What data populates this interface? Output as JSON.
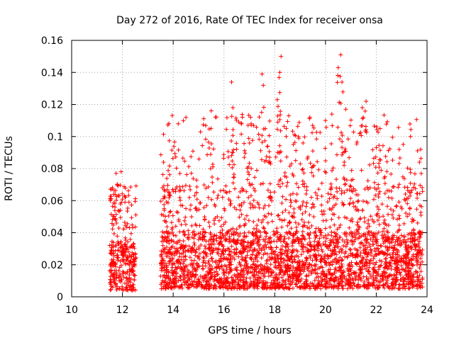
{
  "chart_data": {
    "type": "scatter",
    "title": "Day 272 of 2016, Rate Of TEC Index for receiver onsa",
    "xlabel": "GPS time / hours",
    "ylabel": "ROTI / TECUs",
    "xlim": [
      10,
      24
    ],
    "ylim": [
      0,
      0.16
    ],
    "xticks": [
      10,
      12,
      14,
      16,
      18,
      20,
      22,
      24
    ],
    "xtick_labels": [
      "10",
      "12",
      "14",
      "16",
      "18",
      "20",
      "22",
      "24"
    ],
    "yticks": [
      0,
      0.02,
      0.04,
      0.06,
      0.08,
      0.1,
      0.12,
      0.14,
      0.16
    ],
    "ytick_labels": [
      "0",
      "0.02",
      "0.04",
      "0.06",
      "0.08",
      "0.1",
      "0.12",
      "0.14",
      "0.16"
    ],
    "grid": true,
    "marker": "+",
    "marker_color": "#ff0000",
    "series": [
      {
        "name": "ROTI",
        "segments": [
          {
            "x": [
              11.5,
              12.55
            ],
            "y_typical": [
              0.004,
              0.06
            ],
            "y_max": 0.078
          },
          {
            "x": [
              13.5,
              23.85
            ],
            "y_typical": [
              0.005,
              0.07
            ],
            "y_max": 0.15
          }
        ],
        "notable_points": [
          {
            "x": 11.75,
            "y": 0.077
          },
          {
            "x": 11.95,
            "y": 0.078
          },
          {
            "x": 13.62,
            "y": 0.084
          },
          {
            "x": 15.5,
            "y": 0.116
          },
          {
            "x": 16.3,
            "y": 0.134
          },
          {
            "x": 16.35,
            "y": 0.118
          },
          {
            "x": 16.95,
            "y": 0.107
          },
          {
            "x": 17.05,
            "y": 0.112
          },
          {
            "x": 17.5,
            "y": 0.139
          },
          {
            "x": 17.55,
            "y": 0.132
          },
          {
            "x": 17.8,
            "y": 0.087
          },
          {
            "x": 18.1,
            "y": 0.123
          },
          {
            "x": 18.2,
            "y": 0.14
          },
          {
            "x": 18.25,
            "y": 0.15
          },
          {
            "x": 18.45,
            "y": 0.1
          },
          {
            "x": 19.5,
            "y": 0.091
          },
          {
            "x": 20.0,
            "y": 0.11
          },
          {
            "x": 20.25,
            "y": 0.114
          },
          {
            "x": 20.5,
            "y": 0.143
          },
          {
            "x": 20.6,
            "y": 0.151
          },
          {
            "x": 20.65,
            "y": 0.134
          },
          {
            "x": 20.8,
            "y": 0.117
          },
          {
            "x": 21.45,
            "y": 0.118
          },
          {
            "x": 21.6,
            "y": 0.122
          },
          {
            "x": 22.15,
            "y": 0.105
          },
          {
            "x": 23.35,
            "y": 0.1
          },
          {
            "x": 23.75,
            "y": 0.092
          }
        ]
      }
    ]
  }
}
